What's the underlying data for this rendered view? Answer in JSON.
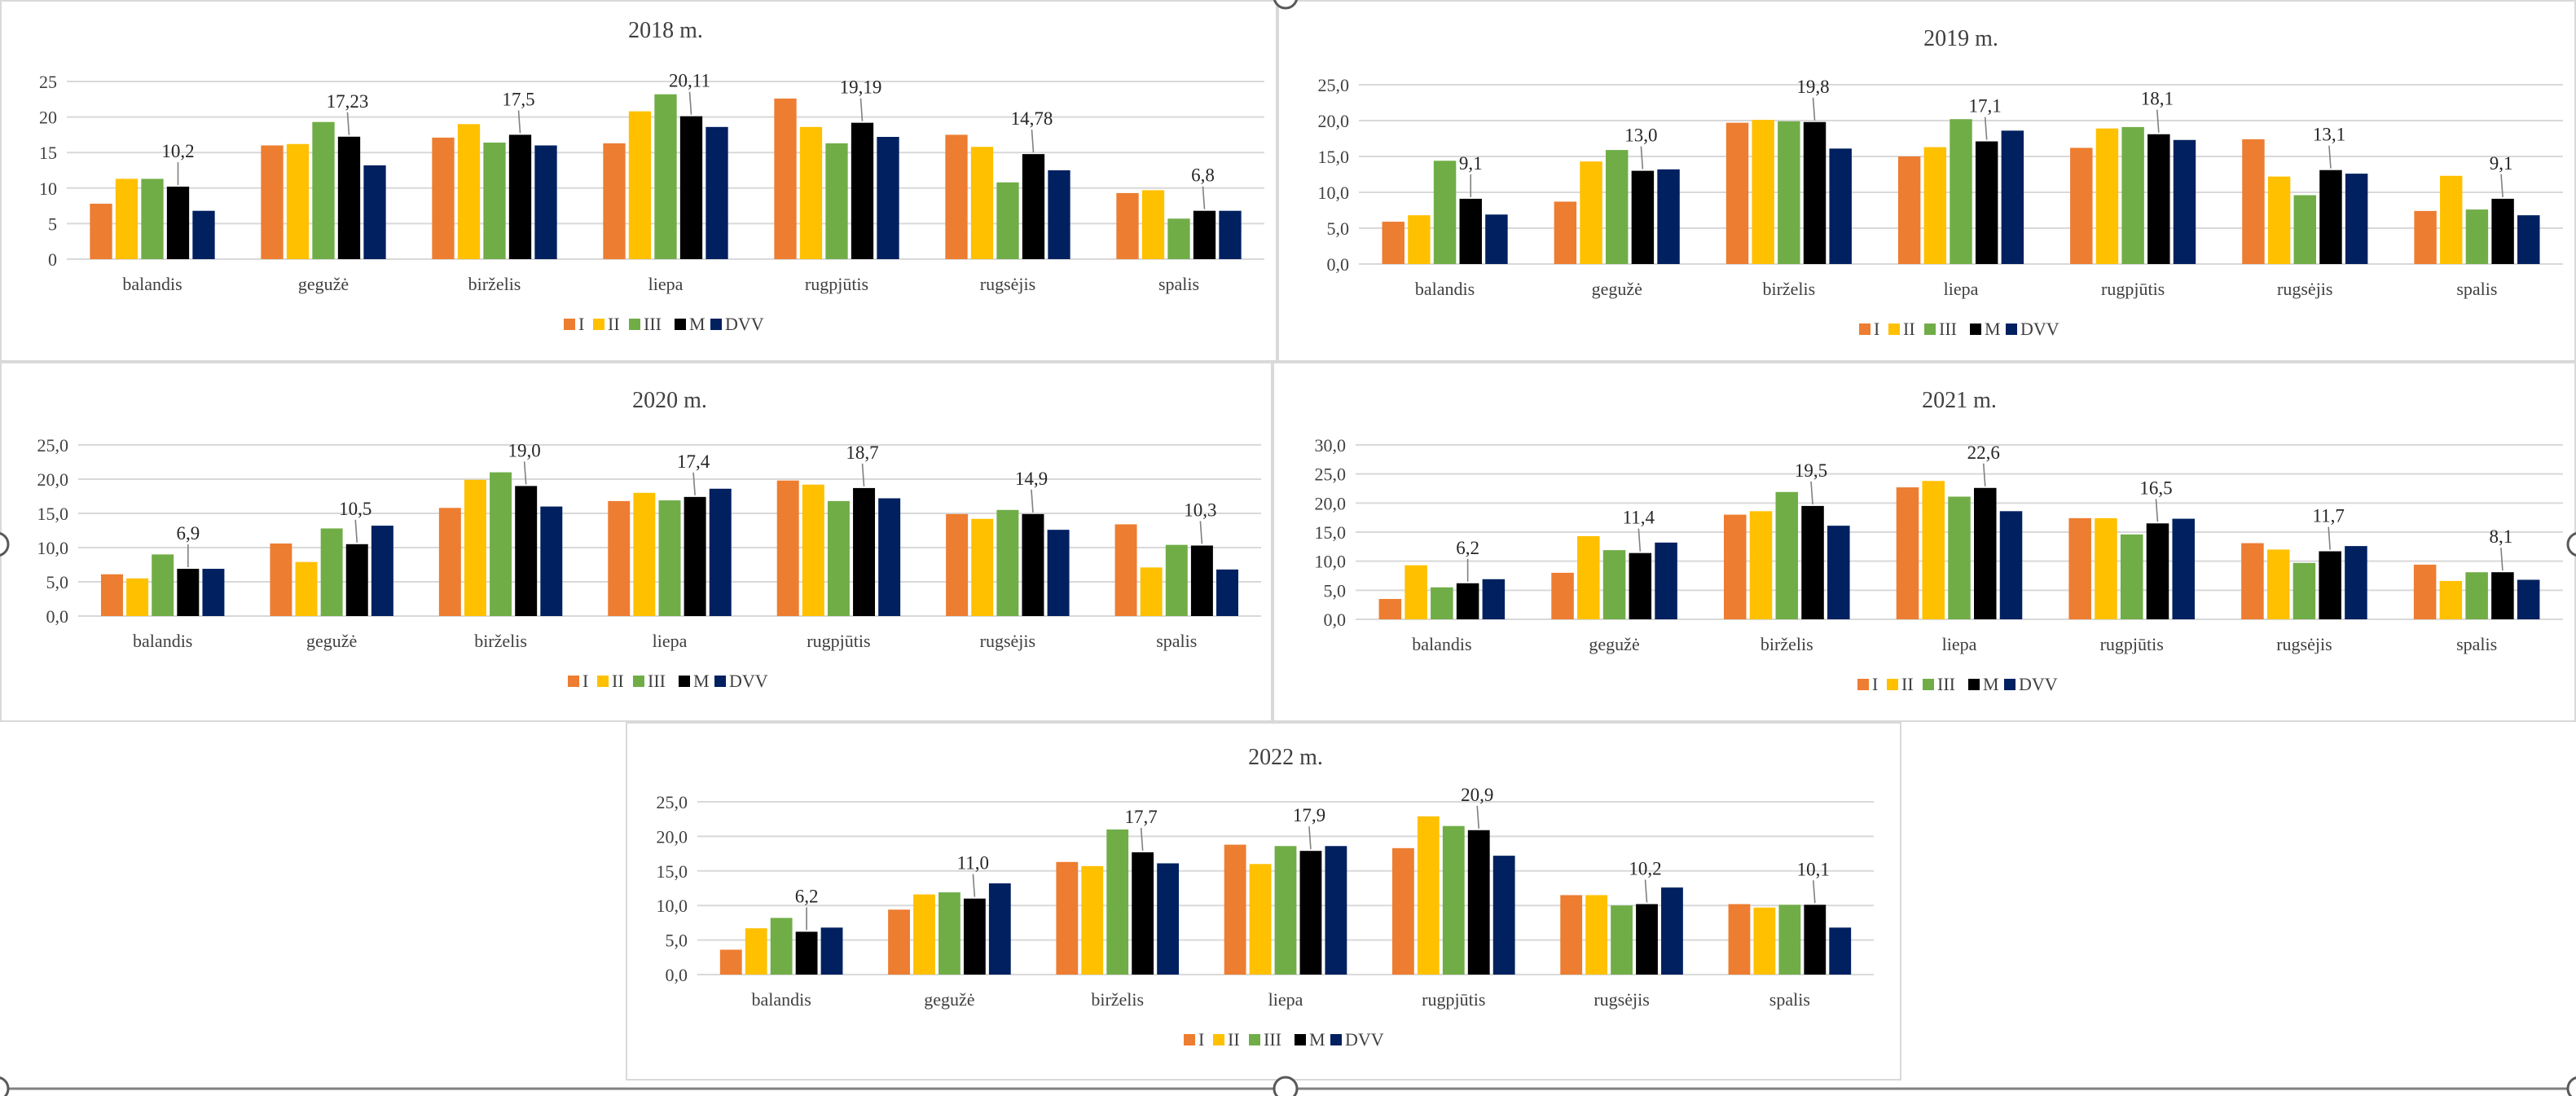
{
  "colors": {
    "I": "#ED7D31",
    "II": "#FFC000",
    "III": "#70AD47",
    "M": "#000000",
    "DVV": "#002060"
  },
  "chart_data": [
    {
      "type": "bar",
      "title": "2018 m.",
      "categories": [
        "balandis",
        "gegužė",
        "birželis",
        "liepa",
        "rugpjūtis",
        "rugsėjis",
        "spalis"
      ],
      "yticks": [
        "0",
        "5",
        "10",
        "15",
        "20",
        "25"
      ],
      "ylim": [
        0,
        25
      ],
      "series": [
        {
          "name": "I",
          "values": [
            7.8,
            16.0,
            17.1,
            16.3,
            22.6,
            17.5,
            9.3
          ]
        },
        {
          "name": "II",
          "values": [
            11.3,
            16.2,
            19.0,
            20.8,
            18.6,
            15.8,
            9.7
          ]
        },
        {
          "name": "III",
          "values": [
            11.3,
            19.3,
            16.4,
            23.2,
            16.3,
            10.8,
            5.7
          ]
        },
        {
          "name": "M",
          "values": [
            10.2,
            17.23,
            17.5,
            20.11,
            19.19,
            14.78,
            6.8
          ]
        },
        {
          "name": "DVV",
          "values": [
            6.8,
            13.2,
            16.0,
            18.6,
            17.2,
            12.5,
            6.8
          ]
        }
      ],
      "data_labels": [
        "10,2",
        "17,23",
        "17,5",
        "20,11",
        "19,19",
        "14,78",
        "6,8"
      ],
      "legend": [
        "I",
        "II",
        "III",
        "M",
        "DVV"
      ],
      "legend_position": "bottom"
    },
    {
      "type": "bar",
      "title": "2019 m.",
      "categories": [
        "balandis",
        "gegužė",
        "birželis",
        "liepa",
        "rugpjūtis",
        "rugsėjis",
        "spalis"
      ],
      "yticks": [
        "0,0",
        "5,0",
        "10,0",
        "15,0",
        "20,0",
        "25,0"
      ],
      "ylim": [
        0,
        25
      ],
      "series": [
        {
          "name": "I",
          "values": [
            5.9,
            8.7,
            19.7,
            15.0,
            16.2,
            17.4,
            7.4
          ]
        },
        {
          "name": "II",
          "values": [
            6.8,
            14.3,
            20.1,
            16.3,
            18.9,
            12.2,
            12.3
          ]
        },
        {
          "name": "III",
          "values": [
            14.4,
            15.9,
            19.9,
            20.2,
            19.1,
            9.6,
            7.6
          ]
        },
        {
          "name": "M",
          "values": [
            9.1,
            13.0,
            19.8,
            17.1,
            18.1,
            13.1,
            9.1
          ]
        },
        {
          "name": "DVV",
          "values": [
            6.9,
            13.2,
            16.1,
            18.6,
            17.3,
            12.6,
            6.8
          ]
        }
      ],
      "data_labels": [
        "9,1",
        "13,0",
        "19,8",
        "17,1",
        "18,1",
        "13,1",
        "9,1"
      ],
      "legend": [
        "I",
        "II",
        "III",
        "M",
        "DVV"
      ],
      "legend_position": "bottom"
    },
    {
      "type": "bar",
      "title": "2020 m.",
      "categories": [
        "balandis",
        "gegužė",
        "birželis",
        "liepa",
        "rugpjūtis",
        "rugsėjis",
        "spalis"
      ],
      "yticks": [
        "0,0",
        "5,0",
        "10,0",
        "15,0",
        "20,0",
        "25,0"
      ],
      "ylim": [
        0,
        25
      ],
      "series": [
        {
          "name": "I",
          "values": [
            6.1,
            10.6,
            15.8,
            16.8,
            19.8,
            14.9,
            13.4
          ]
        },
        {
          "name": "II",
          "values": [
            5.5,
            7.9,
            19.9,
            18.0,
            19.2,
            14.2,
            7.1
          ]
        },
        {
          "name": "III",
          "values": [
            9.0,
            12.8,
            21.0,
            16.9,
            16.8,
            15.5,
            10.4
          ]
        },
        {
          "name": "M",
          "values": [
            6.9,
            10.5,
            19.0,
            17.4,
            18.7,
            14.9,
            10.3
          ]
        },
        {
          "name": "DVV",
          "values": [
            6.9,
            13.2,
            16.0,
            18.6,
            17.2,
            12.6,
            6.8
          ]
        }
      ],
      "data_labels": [
        "6,9",
        "10,5",
        "19,0",
        "17,4",
        "18,7",
        "14,9",
        "10,3"
      ],
      "legend": [
        "I",
        "II",
        "III",
        "M",
        "DVV"
      ],
      "legend_position": "bottom"
    },
    {
      "type": "bar",
      "title": "2021 m.",
      "categories": [
        "balandis",
        "gegužė",
        "birželis",
        "liepa",
        "rugpjūtis",
        "rugsėjis",
        "spalis"
      ],
      "yticks": [
        "0,0",
        "5,0",
        "10,0",
        "15,0",
        "20,0",
        "25,0",
        "30,0"
      ],
      "ylim": [
        0,
        30
      ],
      "series": [
        {
          "name": "I",
          "values": [
            3.5,
            8.0,
            18.0,
            22.7,
            17.4,
            13.1,
            9.4
          ]
        },
        {
          "name": "II",
          "values": [
            9.3,
            14.3,
            18.6,
            23.8,
            17.4,
            12.0,
            6.6
          ]
        },
        {
          "name": "III",
          "values": [
            5.5,
            11.9,
            21.9,
            21.1,
            14.6,
            9.7,
            8.1
          ]
        },
        {
          "name": "M",
          "values": [
            6.2,
            11.4,
            19.5,
            22.6,
            16.5,
            11.7,
            8.1
          ]
        },
        {
          "name": "DVV",
          "values": [
            6.9,
            13.2,
            16.1,
            18.6,
            17.3,
            12.6,
            6.8
          ]
        }
      ],
      "data_labels": [
        "6,2",
        "11,4",
        "19,5",
        "22,6",
        "16,5",
        "11,7",
        "8,1"
      ],
      "legend": [
        "I",
        "II",
        "III",
        "M",
        "DVV"
      ],
      "legend_position": "bottom"
    },
    {
      "type": "bar",
      "title": "2022 m.",
      "categories": [
        "balandis",
        "gegužė",
        "birželis",
        "liepa",
        "rugpjūtis",
        "rugsėjis",
        "spalis"
      ],
      "yticks": [
        "0,0",
        "5,0",
        "10,0",
        "15,0",
        "20,0",
        "25,0"
      ],
      "ylim": [
        0,
        25
      ],
      "series": [
        {
          "name": "I",
          "values": [
            3.6,
            9.4,
            16.3,
            18.8,
            18.3,
            11.5,
            10.2
          ]
        },
        {
          "name": "II",
          "values": [
            6.7,
            11.6,
            15.7,
            16.0,
            22.9,
            11.5,
            9.7
          ]
        },
        {
          "name": "III",
          "values": [
            8.2,
            11.9,
            21.0,
            18.6,
            21.5,
            10.0,
            10.1
          ]
        },
        {
          "name": "M",
          "values": [
            6.2,
            11.0,
            17.7,
            17.9,
            20.9,
            10.2,
            10.1
          ]
        },
        {
          "name": "DVV",
          "values": [
            6.8,
            13.2,
            16.1,
            18.6,
            17.2,
            12.6,
            6.8
          ]
        }
      ],
      "data_labels": [
        "6,2",
        "11,0",
        "17,7",
        "17,9",
        "20,9",
        "10,2",
        "10,1"
      ],
      "legend": [
        "I",
        "II",
        "III",
        "M",
        "DVV"
      ],
      "legend_position": "bottom"
    }
  ]
}
